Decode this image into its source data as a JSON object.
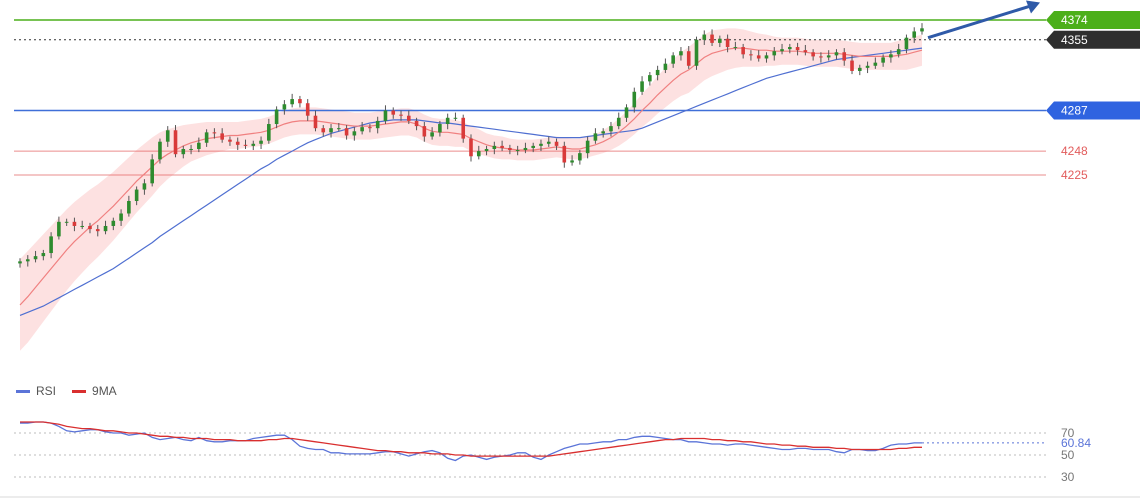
{
  "chart_data": [
    {
      "type": "candlestick",
      "title": "",
      "ylim": [
        4140,
        4385
      ],
      "colors": {
        "up": "#2e8b2e",
        "down": "#d93a3a",
        "ma_fast": "#f08080",
        "ma_slow": "#4f6fd1",
        "band_fill": "#fcd7d7"
      },
      "levels": [
        {
          "value": 4374,
          "label": "4374",
          "color": "#4caf1a",
          "style": "solid",
          "badge": "green"
        },
        {
          "value": 4355,
          "label": "4355",
          "color": "#333333",
          "style": "dotted",
          "badge": "dark"
        },
        {
          "value": 4287,
          "label": "4287",
          "color": "#3f6fd8",
          "style": "solid",
          "badge": "blue"
        },
        {
          "value": 4248,
          "label": "4248",
          "color": "#e25c5c",
          "style": "solid",
          "badge": "text"
        },
        {
          "value": 4225,
          "label": "4225",
          "color": "#e25c5c",
          "style": "solid",
          "badge": "text"
        }
      ],
      "closes": [
        4142,
        4144,
        4147,
        4150,
        4166,
        4180,
        4180,
        4176,
        4176,
        4173,
        4171,
        4176,
        4181,
        4188,
        4200,
        4211,
        4217,
        4240,
        4257,
        4268,
        4245,
        4250,
        4250,
        4256,
        4266,
        4265,
        4259,
        4257,
        4254,
        4253,
        4255,
        4258,
        4274,
        4288,
        4293,
        4298,
        4294,
        4282,
        4270,
        4266,
        4270,
        4270,
        4263,
        4267,
        4271,
        4270,
        4277,
        4287,
        4283,
        4282,
        4277,
        4272,
        4262,
        4266,
        4274,
        4280,
        4280,
        4260,
        4243,
        4248,
        4250,
        4253,
        4251,
        4249,
        4249,
        4251,
        4253,
        4255,
        4257,
        4253,
        4237,
        4239,
        4246,
        4258,
        4265,
        4267,
        4272,
        4280,
        4290,
        4305,
        4315,
        4321,
        4326,
        4332,
        4340,
        4344,
        4330,
        4355,
        4360,
        4352,
        4356,
        4348,
        4348,
        4341,
        4340,
        4337,
        4340,
        4344,
        4346,
        4348,
        4345,
        4343,
        4339,
        4338,
        4340,
        4343,
        4335,
        4325,
        4328,
        4330,
        4333,
        4338,
        4341,
        4346,
        4357,
        4363,
        4366
      ],
      "ma_fast": [
        4100,
        4108,
        4117,
        4126,
        4135,
        4144,
        4153,
        4161,
        4168,
        4175,
        4181,
        4188,
        4195,
        4203,
        4211,
        4219,
        4226,
        4233,
        4240,
        4245,
        4249,
        4253,
        4256,
        4258,
        4260,
        4261,
        4262,
        4263,
        4263,
        4264,
        4265,
        4266,
        4268,
        4271,
        4274,
        4276,
        4277,
        4277,
        4277,
        4276,
        4275,
        4274,
        4273,
        4272,
        4272,
        4272,
        4273,
        4274,
        4275,
        4276,
        4276,
        4274,
        4270,
        4267,
        4266,
        4266,
        4265,
        4264,
        4260,
        4257,
        4254,
        4252,
        4251,
        4250,
        4249,
        4249,
        4249,
        4250,
        4251,
        4252,
        4251,
        4250,
        4250,
        4252,
        4254,
        4257,
        4261,
        4266,
        4272,
        4279,
        4287,
        4294,
        4302,
        4309,
        4316,
        4322,
        4326,
        4332,
        4338,
        4342,
        4344,
        4346,
        4347,
        4347,
        4346,
        4345,
        4345,
        4344,
        4344,
        4344,
        4344,
        4343,
        4342,
        4342,
        4342,
        4342,
        4341,
        4340,
        4339,
        4339,
        4339,
        4339,
        4339,
        4340,
        4341,
        4343,
        4345
      ],
      "ma_slow": [
        4090,
        4093,
        4096,
        4099,
        4103,
        4107,
        4111,
        4115,
        4119,
        4123,
        4127,
        4131,
        4135,
        4140,
        4145,
        4150,
        4155,
        4160,
        4166,
        4171,
        4176,
        4181,
        4186,
        4191,
        4196,
        4201,
        4206,
        4211,
        4216,
        4221,
        4226,
        4231,
        4235,
        4240,
        4244,
        4248,
        4252,
        4256,
        4259,
        4262,
        4265,
        4267,
        4269,
        4271,
        4273,
        4275,
        4276,
        4277,
        4278,
        4278,
        4278,
        4278,
        4277,
        4276,
        4275,
        4275,
        4274,
        4273,
        4272,
        4271,
        4270,
        4269,
        4268,
        4267,
        4266,
        4265,
        4264,
        4263,
        4262,
        4261,
        4261,
        4261,
        4261,
        4262,
        4263,
        4264,
        4265,
        4266,
        4267,
        4268,
        4270,
        4273,
        4276,
        4279,
        4282,
        4285,
        4288,
        4291,
        4294,
        4297,
        4300,
        4303,
        4306,
        4309,
        4312,
        4315,
        4318,
        4320,
        4322,
        4324,
        4326,
        4328,
        4330,
        4332,
        4334,
        4336,
        4337,
        4338,
        4339,
        4340,
        4341,
        4342,
        4343,
        4344,
        4345,
        4346,
        4347
      ],
      "band_width": [
        44,
        44,
        43,
        42,
        41,
        40,
        39,
        38,
        37,
        36,
        35,
        34,
        33,
        32,
        31,
        30,
        29,
        28,
        26,
        24,
        22,
        20,
        18,
        17,
        16,
        15,
        14,
        13,
        13,
        13,
        13,
        13,
        13,
        13,
        13,
        13,
        13,
        13,
        13,
        13,
        13,
        13,
        13,
        13,
        13,
        13,
        13,
        13,
        13,
        13,
        13,
        13,
        13,
        13,
        13,
        13,
        13,
        12,
        12,
        12,
        11,
        11,
        11,
        10,
        10,
        10,
        10,
        10,
        10,
        10,
        10,
        10,
        10,
        10,
        10,
        11,
        12,
        13,
        14,
        15,
        16,
        17,
        18,
        19,
        20,
        21,
        22,
        22,
        22,
        22,
        21,
        20,
        19,
        18,
        17,
        16,
        15,
        14,
        13,
        13,
        13,
        13,
        13,
        13,
        13,
        13,
        13,
        13,
        13,
        13,
        13,
        13,
        13,
        14,
        15,
        15,
        15
      ],
      "projection_arrow": {
        "from_index": 116,
        "from_value": 4357,
        "to_value": 4385
      }
    },
    {
      "type": "line",
      "title": "",
      "ylim": [
        30,
        80
      ],
      "yticks": [
        70,
        50,
        30
      ],
      "series": [
        {
          "name": "RSI",
          "color": "#5b74d8",
          "values": [
            79,
            79,
            80,
            80,
            79,
            76,
            72,
            71,
            72,
            73,
            73,
            71,
            70,
            70,
            68,
            69,
            70,
            66,
            64,
            65,
            66,
            64,
            63,
            66,
            63,
            62,
            62,
            63,
            63,
            63,
            65,
            66,
            67,
            68,
            68,
            64,
            58,
            56,
            55,
            55,
            52,
            52,
            51,
            51,
            51,
            51,
            52,
            53,
            53,
            51,
            49,
            51,
            53,
            54,
            52,
            47,
            45,
            49,
            50,
            48,
            46,
            48,
            49,
            50,
            52,
            52,
            48,
            46,
            50,
            53,
            56,
            58,
            60,
            60,
            61,
            62,
            62,
            64,
            64,
            66,
            67,
            67,
            66,
            65,
            64,
            64,
            62,
            62,
            61,
            60,
            60,
            59,
            60,
            60,
            59,
            58,
            57,
            56,
            55,
            55,
            56,
            56,
            55,
            55,
            55,
            53,
            52,
            55,
            55,
            54,
            54,
            56,
            59,
            60,
            60,
            61,
            61
          ]
        },
        {
          "name": "9MA",
          "color": "#d92f2f",
          "values": [
            80,
            80,
            80,
            80,
            79,
            78,
            76,
            75,
            74,
            74,
            73,
            72,
            72,
            71,
            70,
            70,
            69,
            68,
            67,
            67,
            66,
            66,
            65,
            65,
            65,
            64,
            64,
            64,
            63,
            63,
            63,
            63,
            64,
            64,
            65,
            65,
            64,
            63,
            62,
            61,
            60,
            59,
            58,
            57,
            56,
            55,
            54,
            54,
            53,
            53,
            52,
            52,
            52,
            51,
            51,
            51,
            50,
            50,
            49,
            49,
            49,
            49,
            49,
            49,
            49,
            49,
            49,
            49,
            49,
            50,
            51,
            52,
            53,
            54,
            55,
            56,
            57,
            58,
            59,
            60,
            61,
            62,
            63,
            64,
            64,
            65,
            65,
            65,
            65,
            64,
            64,
            63,
            63,
            62,
            62,
            61,
            60,
            60,
            59,
            59,
            58,
            58,
            57,
            57,
            57,
            56,
            56,
            55,
            55,
            55,
            55,
            55,
            55,
            56,
            56,
            57,
            57
          ]
        }
      ],
      "last_value_label": "60.84",
      "legend": [
        {
          "name": "RSI",
          "color": "#5b74d8"
        },
        {
          "name": "9MA",
          "color": "#d92f2f"
        }
      ]
    }
  ]
}
